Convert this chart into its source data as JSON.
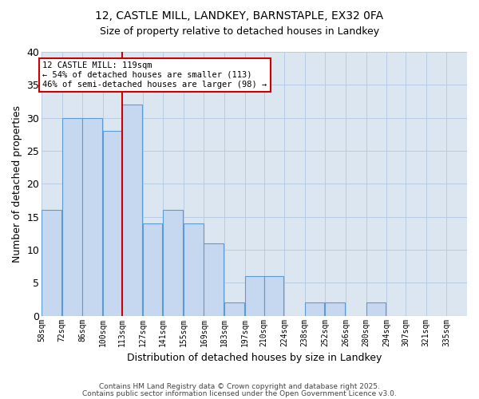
{
  "title1": "12, CASTLE MILL, LANDKEY, BARNSTAPLE, EX32 0FA",
  "title2": "Size of property relative to detached houses in Landkey",
  "xlabel": "Distribution of detached houses by size in Landkey",
  "ylabel": "Number of detached properties",
  "bin_labels": [
    "58sqm",
    "72sqm",
    "86sqm",
    "100sqm",
    "113sqm",
    "127sqm",
    "141sqm",
    "155sqm",
    "169sqm",
    "183sqm",
    "197sqm",
    "210sqm",
    "224sqm",
    "238sqm",
    "252sqm",
    "266sqm",
    "280sqm",
    "294sqm",
    "307sqm",
    "321sqm",
    "335sqm"
  ],
  "bin_edges": [
    58,
    72,
    86,
    100,
    113,
    127,
    141,
    155,
    169,
    183,
    197,
    210,
    224,
    238,
    252,
    266,
    280,
    294,
    307,
    321,
    335
  ],
  "values": [
    16,
    30,
    30,
    28,
    32,
    14,
    16,
    14,
    11,
    2,
    6,
    6,
    0,
    2,
    2,
    0,
    2,
    0,
    0,
    0
  ],
  "property_bin_index": 4,
  "bar_color": "#c5d8f0",
  "bar_edge_color": "#5b9bd5",
  "property_line_color": "#cc0000",
  "annotation_line1": "12 CASTLE MILL: 119sqm",
  "annotation_line2": "← 54% of detached houses are smaller (113)",
  "annotation_line3": "46% of semi-detached houses are larger (98) →",
  "annotation_box_color": "white",
  "annotation_box_edge_color": "#cc0000",
  "grid_color": "#b8cce4",
  "background_color": "#dce6f1",
  "ylim": [
    0,
    40
  ],
  "yticks": [
    0,
    5,
    10,
    15,
    20,
    25,
    30,
    35,
    40
  ],
  "footer1": "Contains HM Land Registry data © Crown copyright and database right 2025.",
  "footer2": "Contains public sector information licensed under the Open Government Licence v3.0."
}
